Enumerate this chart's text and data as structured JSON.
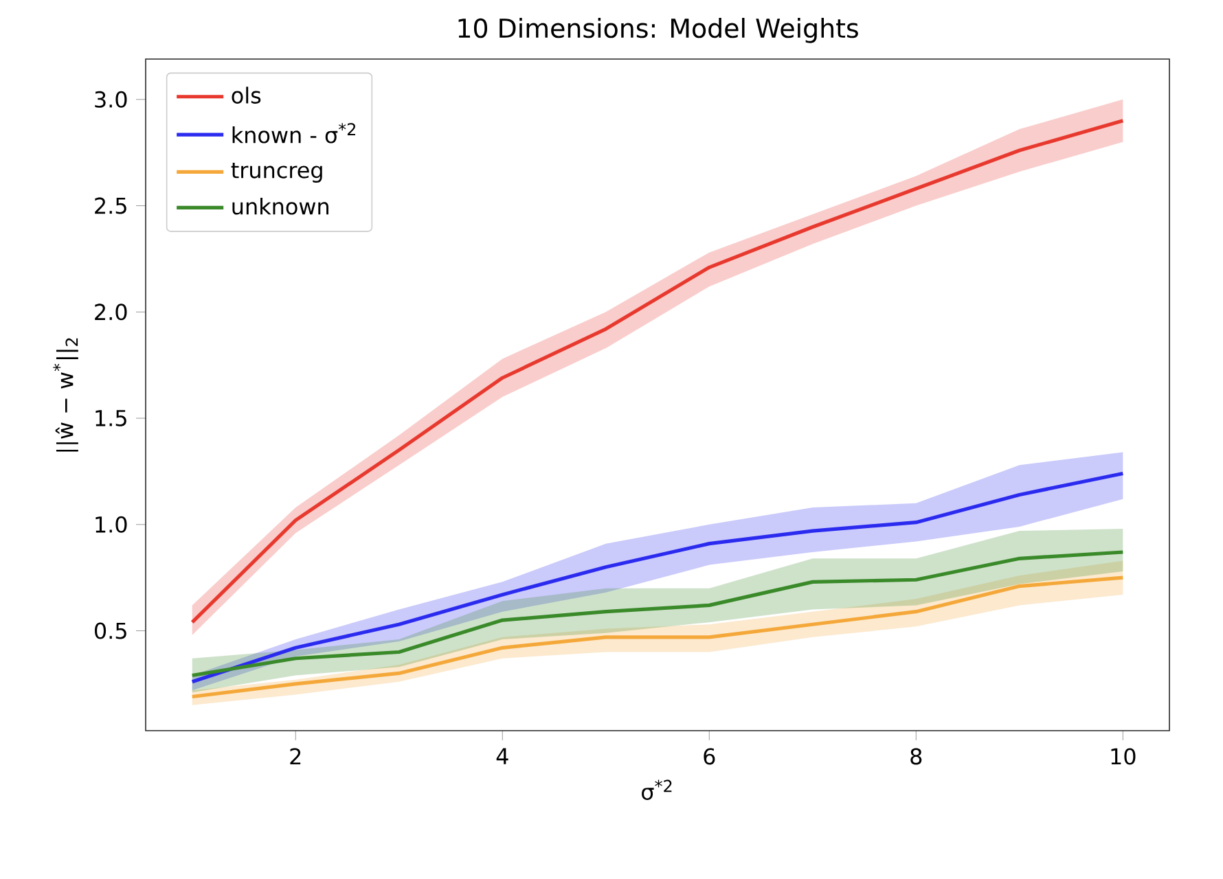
{
  "chart_data": {
    "type": "line",
    "title": "10 Dimensions: Model Weights",
    "xlabel": "σ$^{*2}$",
    "ylabel": "||ŵ − w$^{*}$||$_{2}$",
    "x": [
      1,
      2,
      3,
      4,
      5,
      6,
      7,
      8,
      9,
      10
    ],
    "series": [
      {
        "name": "ols",
        "color": "#e8392f",
        "values": [
          0.54,
          1.02,
          1.35,
          1.69,
          1.92,
          2.21,
          2.4,
          2.58,
          2.76,
          2.9
        ],
        "lower": [
          0.48,
          0.96,
          1.28,
          1.6,
          1.83,
          2.12,
          2.32,
          2.5,
          2.66,
          2.8
        ],
        "upper": [
          0.62,
          1.08,
          1.42,
          1.78,
          2.0,
          2.28,
          2.46,
          2.64,
          2.86,
          3.0
        ]
      },
      {
        "name": "known - σ$^{*2}$",
        "color": "#2b2bf0",
        "values": [
          0.26,
          0.42,
          0.53,
          0.67,
          0.8,
          0.91,
          0.97,
          1.01,
          1.14,
          1.24
        ],
        "lower": [
          0.22,
          0.38,
          0.45,
          0.59,
          0.68,
          0.81,
          0.87,
          0.92,
          0.99,
          1.12
        ],
        "upper": [
          0.29,
          0.46,
          0.6,
          0.73,
          0.91,
          1.0,
          1.08,
          1.1,
          1.28,
          1.34
        ]
      },
      {
        "name": "truncreg",
        "color": "#f5a83a",
        "values": [
          0.19,
          0.25,
          0.3,
          0.42,
          0.47,
          0.47,
          0.53,
          0.59,
          0.71,
          0.75
        ],
        "lower": [
          0.15,
          0.2,
          0.26,
          0.37,
          0.4,
          0.4,
          0.47,
          0.52,
          0.62,
          0.67
        ],
        "upper": [
          0.22,
          0.27,
          0.34,
          0.47,
          0.51,
          0.53,
          0.59,
          0.65,
          0.76,
          0.83
        ]
      },
      {
        "name": "unknown",
        "color": "#3a8a2a",
        "values": [
          0.29,
          0.37,
          0.4,
          0.55,
          0.59,
          0.62,
          0.73,
          0.74,
          0.84,
          0.87
        ],
        "lower": [
          0.21,
          0.29,
          0.33,
          0.46,
          0.49,
          0.54,
          0.6,
          0.62,
          0.72,
          0.78
        ],
        "upper": [
          0.37,
          0.41,
          0.46,
          0.64,
          0.7,
          0.7,
          0.84,
          0.84,
          0.97,
          0.98
        ]
      }
    ],
    "xlim": [
      0.55,
      10.45
    ],
    "ylim": [
      0.03,
      3.19
    ],
    "xticks": [
      2,
      4,
      6,
      8,
      10
    ],
    "yticks": [
      0.5,
      {
        "value": 1,
        "label": "1.0"
      },
      1.5,
      {
        "value": 2,
        "label": "2.0"
      },
      2.5,
      {
        "value": 3,
        "label": "3.0"
      }
    ],
    "grid": false,
    "legend": "top left",
    "marker": "none",
    "line_style": "solid"
  }
}
